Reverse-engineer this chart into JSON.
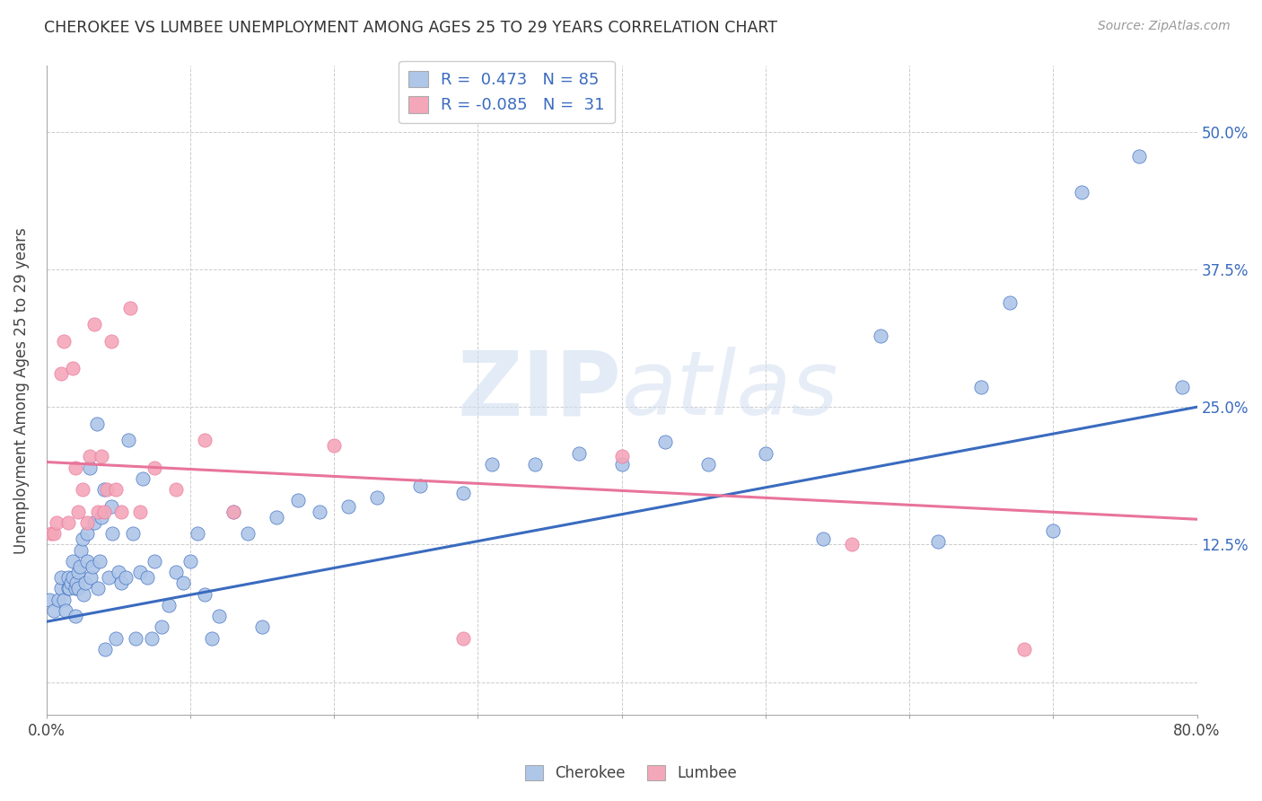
{
  "title": "CHEROKEE VS LUMBEE UNEMPLOYMENT AMONG AGES 25 TO 29 YEARS CORRELATION CHART",
  "source": "Source: ZipAtlas.com",
  "xlabel": "",
  "ylabel": "Unemployment Among Ages 25 to 29 years",
  "xlim": [
    0.0,
    0.8
  ],
  "ylim": [
    -0.03,
    0.56
  ],
  "xticks": [
    0.0,
    0.1,
    0.2,
    0.3,
    0.4,
    0.5,
    0.6,
    0.7,
    0.8
  ],
  "xticklabels": [
    "0.0%",
    "",
    "",
    "",
    "",
    "",
    "",
    "",
    "80.0%"
  ],
  "ytick_positions": [
    0.0,
    0.125,
    0.25,
    0.375,
    0.5
  ],
  "yticklabels": [
    "",
    "12.5%",
    "25.0%",
    "37.5%",
    "50.0%"
  ],
  "cherokee_R": 0.473,
  "cherokee_N": 85,
  "lumbee_R": -0.085,
  "lumbee_N": 31,
  "cherokee_color": "#aec6e8",
  "lumbee_color": "#f4a7b9",
  "cherokee_line_color": "#3a6bbf",
  "lumbee_line_color": "#e8749a",
  "background_color": "#ffffff",
  "blue_line_x0": 0.0,
  "blue_line_y0": 0.055,
  "blue_line_x1": 0.8,
  "blue_line_y1": 0.25,
  "pink_line_x0": 0.0,
  "pink_line_y0": 0.2,
  "pink_line_x1": 0.8,
  "pink_line_y1": 0.148,
  "cherokee_x": [
    0.002,
    0.005,
    0.008,
    0.01,
    0.01,
    0.012,
    0.013,
    0.015,
    0.015,
    0.016,
    0.017,
    0.018,
    0.018,
    0.02,
    0.02,
    0.021,
    0.022,
    0.022,
    0.023,
    0.024,
    0.025,
    0.026,
    0.027,
    0.028,
    0.028,
    0.03,
    0.031,
    0.032,
    0.033,
    0.035,
    0.036,
    0.037,
    0.038,
    0.04,
    0.041,
    0.043,
    0.045,
    0.046,
    0.048,
    0.05,
    0.052,
    0.055,
    0.057,
    0.06,
    0.062,
    0.065,
    0.067,
    0.07,
    0.073,
    0.075,
    0.08,
    0.085,
    0.09,
    0.095,
    0.1,
    0.105,
    0.11,
    0.115,
    0.12,
    0.13,
    0.14,
    0.15,
    0.16,
    0.175,
    0.19,
    0.21,
    0.23,
    0.26,
    0.29,
    0.31,
    0.34,
    0.37,
    0.4,
    0.43,
    0.46,
    0.5,
    0.54,
    0.58,
    0.62,
    0.65,
    0.67,
    0.7,
    0.72,
    0.76,
    0.79
  ],
  "cherokee_y": [
    0.075,
    0.065,
    0.075,
    0.085,
    0.095,
    0.075,
    0.065,
    0.085,
    0.095,
    0.085,
    0.09,
    0.095,
    0.11,
    0.06,
    0.085,
    0.09,
    0.085,
    0.1,
    0.105,
    0.12,
    0.13,
    0.08,
    0.09,
    0.11,
    0.135,
    0.195,
    0.095,
    0.105,
    0.145,
    0.235,
    0.085,
    0.11,
    0.15,
    0.175,
    0.03,
    0.095,
    0.16,
    0.135,
    0.04,
    0.1,
    0.09,
    0.095,
    0.22,
    0.135,
    0.04,
    0.1,
    0.185,
    0.095,
    0.04,
    0.11,
    0.05,
    0.07,
    0.1,
    0.09,
    0.11,
    0.135,
    0.08,
    0.04,
    0.06,
    0.155,
    0.135,
    0.05,
    0.15,
    0.165,
    0.155,
    0.16,
    0.168,
    0.178,
    0.172,
    0.198,
    0.198,
    0.208,
    0.198,
    0.218,
    0.198,
    0.208,
    0.13,
    0.315,
    0.128,
    0.268,
    0.345,
    0.138,
    0.445,
    0.478,
    0.268
  ],
  "lumbee_x": [
    0.003,
    0.005,
    0.007,
    0.01,
    0.012,
    0.015,
    0.018,
    0.02,
    0.022,
    0.025,
    0.028,
    0.03,
    0.033,
    0.036,
    0.038,
    0.04,
    0.042,
    0.045,
    0.048,
    0.052,
    0.058,
    0.065,
    0.075,
    0.09,
    0.11,
    0.13,
    0.2,
    0.29,
    0.4,
    0.56,
    0.68
  ],
  "lumbee_y": [
    0.135,
    0.135,
    0.145,
    0.28,
    0.31,
    0.145,
    0.285,
    0.195,
    0.155,
    0.175,
    0.145,
    0.205,
    0.325,
    0.155,
    0.205,
    0.155,
    0.175,
    0.31,
    0.175,
    0.155,
    0.34,
    0.155,
    0.195,
    0.175,
    0.22,
    0.155,
    0.215,
    0.04,
    0.205,
    0.125,
    0.03
  ]
}
